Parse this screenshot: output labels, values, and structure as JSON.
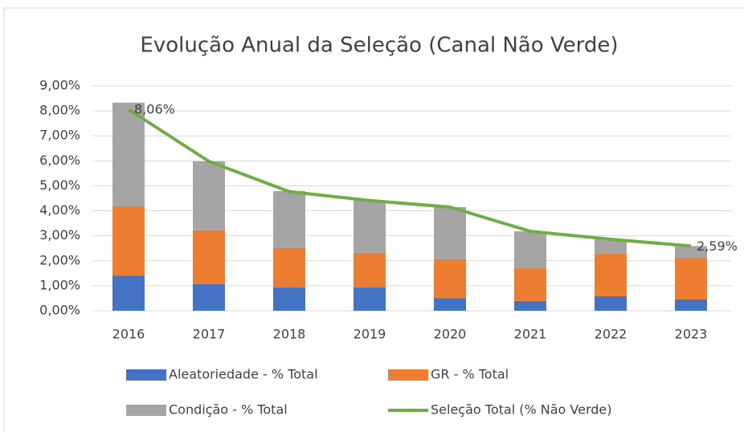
{
  "chart_data": {
    "type": "bar",
    "stacked": true,
    "title": "Evolução Anual da Seleção (Canal Não Verde)",
    "categories": [
      "2016",
      "2017",
      "2018",
      "2019",
      "2020",
      "2021",
      "2022",
      "2023"
    ],
    "series": [
      {
        "name": "Aleatoriedade - % Total",
        "color": "#4472c4",
        "values": [
          1.41,
          1.06,
          0.93,
          0.93,
          0.51,
          0.39,
          0.58,
          0.45
        ]
      },
      {
        "name": "GR - % Total",
        "color": "#ed7d31",
        "values": [
          2.77,
          2.16,
          1.58,
          1.39,
          1.55,
          1.31,
          1.7,
          1.67
        ]
      },
      {
        "name": "Condição - % Total",
        "color": "#a5a5a5",
        "values": [
          4.15,
          2.76,
          2.28,
          2.09,
          2.09,
          1.48,
          0.58,
          0.47
        ]
      },
      {
        "name": "Seleção Total (% Não Verde)",
        "color": "#70ad47",
        "type": "line",
        "values": [
          8.06,
          5.98,
          4.77,
          4.41,
          4.15,
          3.18,
          2.86,
          2.59
        ],
        "value_labels": [
          "8,06%",
          null,
          null,
          null,
          null,
          null,
          null,
          "2,59%"
        ]
      }
    ],
    "ylim": [
      0,
      9
    ],
    "yticks": [
      {
        "value": 0,
        "label": "0,00%"
      },
      {
        "value": 1,
        "label": "1,00%"
      },
      {
        "value": 2,
        "label": "2,00%"
      },
      {
        "value": 3,
        "label": "3,00%"
      },
      {
        "value": 4,
        "label": "4,00%"
      },
      {
        "value": 5,
        "label": "5,00%"
      },
      {
        "value": 6,
        "label": "6,00%"
      },
      {
        "value": 7,
        "label": "7,00%"
      },
      {
        "value": 8,
        "label": "8,00%"
      },
      {
        "value": 9,
        "label": "9,00%"
      }
    ],
    "grid": true,
    "legend": "bottom"
  }
}
